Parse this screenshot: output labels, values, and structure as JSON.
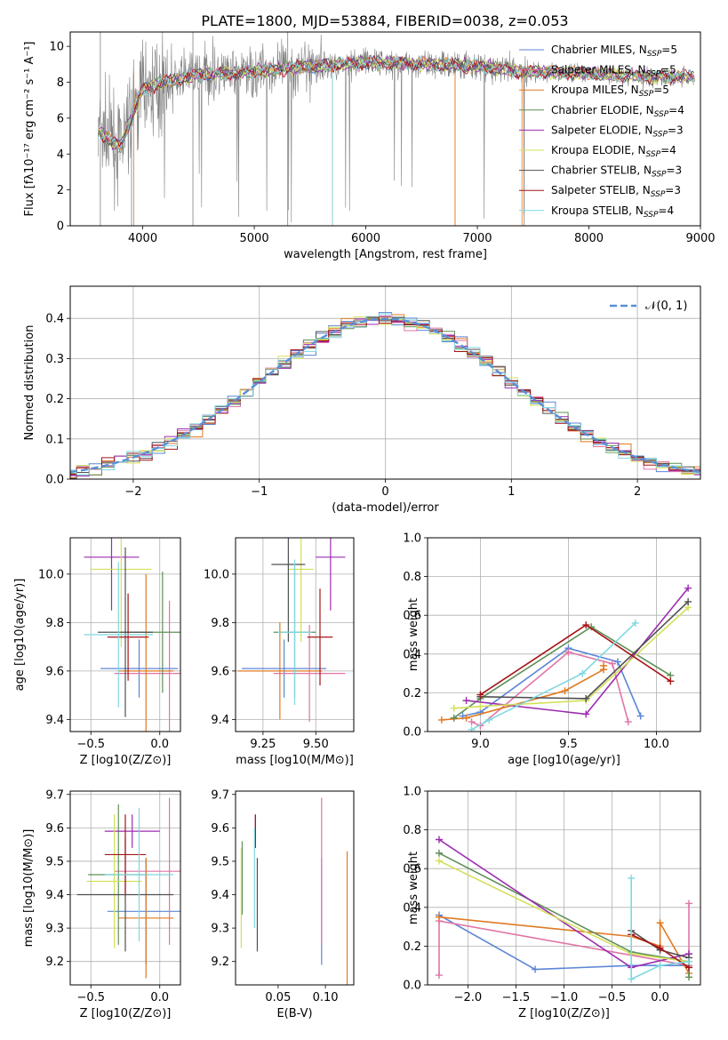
{
  "title": "PLATE=1800, MJD=53884, FIBERID=0038, z=0.053",
  "series": [
    {
      "name": "Chabrier MILES",
      "nssp": "5",
      "color": "#5b86d6"
    },
    {
      "name": "Salpeter MILES",
      "nssp": "5",
      "color": "#e075a6"
    },
    {
      "name": "Kroupa MILES",
      "nssp": "5",
      "color": "#e07a22"
    },
    {
      "name": "Chabrier ELODIE",
      "nssp": "4",
      "color": "#5f8f57"
    },
    {
      "name": "Salpeter ELODIE",
      "nssp": "3",
      "color": "#9c2bb0"
    },
    {
      "name": "Kroupa ELODIE",
      "nssp": "4",
      "color": "#d3e05a"
    },
    {
      "name": "Chabrier STELIB",
      "nssp": "3",
      "color": "#505050"
    },
    {
      "name": "Salpeter STELIB",
      "nssp": "3",
      "color": "#a61418"
    },
    {
      "name": "Kroupa STELIB",
      "nssp": "4",
      "color": "#7fd8e0"
    }
  ],
  "chart_data": [
    {
      "type": "line",
      "id": "spectrum",
      "title": "PLATE=1800, MJD=53884, FIBERID=0038, z=0.053",
      "xlabel": "wavelength [Angstrom, rest frame]",
      "ylabel": "Flux [fλ10⁻¹⁷ erg cm⁻² s⁻¹ A⁻¹]",
      "xlim": [
        3350,
        9000
      ],
      "ylim": [
        0,
        10.8
      ],
      "xticks": [
        4000,
        5000,
        6000,
        7000,
        8000,
        9000
      ],
      "yticks": [
        0,
        2,
        4,
        6,
        8,
        10
      ],
      "grid": false,
      "legend": "top-right",
      "data_color": "#808080",
      "continuum": [
        [
          3600,
          5.2
        ],
        [
          3800,
          4.4
        ],
        [
          3920,
          6.4
        ],
        [
          4000,
          7.6
        ],
        [
          4200,
          8.0
        ],
        [
          4500,
          8.4
        ],
        [
          5000,
          8.6
        ],
        [
          5500,
          8.9
        ],
        [
          6000,
          9.1
        ],
        [
          6500,
          9.0
        ],
        [
          7000,
          8.9
        ],
        [
          7400,
          8.6
        ],
        [
          8000,
          8.5
        ],
        [
          8500,
          8.3
        ],
        [
          8900,
          8.3
        ]
      ]
    },
    {
      "type": "line",
      "id": "residual-histogram",
      "xlabel": "(data-model)/error",
      "ylabel": "Normed distribution",
      "xlim": [
        -2.5,
        2.5
      ],
      "ylim": [
        0,
        0.48
      ],
      "xticks": [
        -2,
        -1,
        0,
        1,
        2
      ],
      "yticks": [
        0.0,
        0.1,
        0.2,
        0.3,
        0.4
      ],
      "grid": true,
      "legend": "top-right",
      "reference_label": "𝒩(0, 1)",
      "reference_color": "#5b8fd6",
      "bin_width": 0.1
    },
    {
      "type": "scatter",
      "id": "age-vs-Z",
      "xlabel": "Z [log10(Z/Z⊙)]",
      "ylabel": "age [log10(age/yr)]",
      "xlim": [
        -0.65,
        0.15
      ],
      "ylim": [
        9.35,
        10.15
      ],
      "xticks": [
        -0.5,
        0.0
      ],
      "yticks": [
        9.4,
        9.6,
        9.8,
        10.0
      ],
      "grid": true,
      "points": [
        {
          "x": -0.15,
          "y": 9.61,
          "xerr": 0.28,
          "yerr": 0.12
        },
        {
          "x": 0.07,
          "y": 9.59,
          "xerr": 0.4,
          "yerr": 0.3
        },
        {
          "x": -0.1,
          "y": 9.6,
          "xerr": 0.2,
          "yerr": 0.4
        },
        {
          "x": 0.02,
          "y": 9.76,
          "xerr": 0.3,
          "yerr": 0.25
        },
        {
          "x": -0.35,
          "y": 10.07,
          "xerr": 0.2,
          "yerr": 0.22
        },
        {
          "x": -0.28,
          "y": 10.02,
          "xerr": 0.22,
          "yerr": 0.32
        },
        {
          "x": -0.25,
          "y": 9.76,
          "xerr": 0.2,
          "yerr": 0.35
        },
        {
          "x": -0.23,
          "y": 9.74,
          "xerr": 0.15,
          "yerr": 0.18
        },
        {
          "x": -0.3,
          "y": 9.75,
          "xerr": 0.25,
          "yerr": 0.3
        }
      ]
    },
    {
      "type": "scatter",
      "id": "age-vs-mass",
      "xlabel": "mass [log10(M/M⊙)]",
      "ylabel": "",
      "xlim": [
        9.12,
        9.68
      ],
      "ylim": [
        9.35,
        10.15
      ],
      "xticks": [
        9.25,
        9.5
      ],
      "yticks": [
        9.4,
        9.6,
        9.8,
        10.0
      ],
      "grid": true,
      "points": [
        {
          "x": 9.35,
          "y": 9.61,
          "xerr": 0.2,
          "yerr": 0.12
        },
        {
          "x": 9.47,
          "y": 9.59,
          "xerr": 0.17,
          "yerr": 0.2
        },
        {
          "x": 9.33,
          "y": 9.6,
          "xerr": 0.2,
          "yerr": 0.2
        },
        {
          "x": 9.4,
          "y": 9.76,
          "xerr": 0.1,
          "yerr": 0.27
        },
        {
          "x": 9.57,
          "y": 10.07,
          "xerr": 0.07,
          "yerr": 0.22
        },
        {
          "x": 9.43,
          "y": 10.02,
          "xerr": 0.06,
          "yerr": 0.3
        },
        {
          "x": 9.37,
          "y": 10.04,
          "xerr": 0.08,
          "yerr": 0.32
        },
        {
          "x": 9.52,
          "y": 9.74,
          "xerr": 0.06,
          "yerr": 0.2
        },
        {
          "x": 9.4,
          "y": 9.76,
          "xerr": 0.08,
          "yerr": 0.3
        }
      ]
    },
    {
      "type": "line",
      "id": "massweight-vs-age",
      "xlabel": "age [log10(age/yr)]",
      "ylabel": "mass weight",
      "xlim": [
        8.7,
        10.25
      ],
      "ylim": [
        0,
        1.0
      ],
      "xticks": [
        9.0,
        9.5,
        10.0
      ],
      "yticks": [
        0.0,
        0.2,
        0.4,
        0.6,
        0.8,
        1.0
      ],
      "grid": true,
      "series": [
        {
          "x": [
            8.9,
            9.0,
            9.5,
            9.78,
            9.91
          ],
          "y": [
            0.08,
            0.1,
            0.43,
            0.36,
            0.08
          ]
        },
        {
          "x": [
            8.95,
            9.0,
            9.5,
            9.75,
            9.84
          ],
          "y": [
            0.05,
            0.03,
            0.41,
            0.35,
            0.05
          ]
        },
        {
          "x": [
            8.78,
            8.92,
            9.48,
            9.7,
            9.7
          ],
          "y": [
            0.06,
            0.07,
            0.21,
            0.32,
            0.34
          ]
        },
        {
          "x": [
            8.85,
            9.0,
            9.63,
            10.08
          ],
          "y": [
            0.07,
            0.17,
            0.54,
            0.29
          ]
        },
        {
          "x": [
            8.92,
            9.6,
            10.18
          ],
          "y": [
            0.16,
            0.09,
            0.74
          ]
        },
        {
          "x": [
            8.85,
            9.0,
            9.6,
            10.18
          ],
          "y": [
            0.12,
            0.13,
            0.16,
            0.64
          ]
        },
        {
          "x": [
            9.0,
            9.6,
            10.18
          ],
          "y": [
            0.18,
            0.17,
            0.67
          ]
        },
        {
          "x": [
            9.0,
            9.6,
            10.08
          ],
          "y": [
            0.19,
            0.55,
            0.26
          ]
        },
        {
          "x": [
            8.95,
            9.05,
            9.58,
            9.88
          ],
          "y": [
            0.01,
            0.06,
            0.3,
            0.56
          ]
        }
      ]
    },
    {
      "type": "scatter",
      "id": "mass-vs-Z",
      "xlabel": "Z [log10(Z/Z⊙)]",
      "ylabel": "mass [log10(M/M⊙)]",
      "xlim": [
        -0.65,
        0.15
      ],
      "ylim": [
        9.13,
        9.71
      ],
      "xticks": [
        -0.5,
        0.0
      ],
      "yticks": [
        9.2,
        9.3,
        9.4,
        9.5,
        9.6,
        9.7
      ],
      "grid": true,
      "points": [
        {
          "x": -0.1,
          "y": 9.35,
          "xerr": 0.28,
          "yerr": 0.16
        },
        {
          "x": 0.07,
          "y": 9.47,
          "xerr": 0.4,
          "yerr": 0.22
        },
        {
          "x": -0.1,
          "y": 9.33,
          "xerr": 0.2,
          "yerr": 0.18
        },
        {
          "x": -0.3,
          "y": 9.46,
          "xerr": 0.22,
          "yerr": 0.21
        },
        {
          "x": -0.2,
          "y": 9.59,
          "xerr": 0.2,
          "yerr": 0.05
        },
        {
          "x": -0.33,
          "y": 9.44,
          "xerr": 0.2,
          "yerr": 0.2
        },
        {
          "x": -0.25,
          "y": 9.4,
          "xerr": 0.35,
          "yerr": 0.17
        },
        {
          "x": -0.25,
          "y": 9.52,
          "xerr": 0.15,
          "yerr": 0.12
        },
        {
          "x": -0.15,
          "y": 9.46,
          "xerr": 0.25,
          "yerr": 0.2
        }
      ]
    },
    {
      "type": "scatter",
      "id": "mass-vs-EBV",
      "xlabel": "E(B-V)",
      "ylabel": "",
      "xlim": [
        0.005,
        0.13
      ],
      "ylim": [
        9.13,
        9.71
      ],
      "xticks": [
        0.05,
        0.1
      ],
      "yticks": [
        9.2,
        9.3,
        9.4,
        9.5,
        9.6,
        9.7
      ],
      "grid": false,
      "points": [
        {
          "x": 0.096,
          "y": 9.35,
          "yerr": 0.16
        },
        {
          "x": 0.096,
          "y": 9.47,
          "yerr": 0.22
        },
        {
          "x": 0.123,
          "y": 9.33,
          "yerr": 0.2
        },
        {
          "x": 0.012,
          "y": 9.45,
          "yerr": 0.11
        },
        {
          "x": 0.026,
          "y": 9.59,
          "yerr": 0.05
        },
        {
          "x": 0.011,
          "y": 9.39,
          "yerr": 0.15
        },
        {
          "x": 0.028,
          "y": 9.37,
          "yerr": 0.14
        },
        {
          "x": 0.026,
          "y": 9.59,
          "yerr": 0.05
        },
        {
          "x": 0.025,
          "y": 9.45,
          "yerr": 0.15
        }
      ]
    },
    {
      "type": "line",
      "id": "massweight-vs-Z",
      "xlabel": "Z [log10(Z/Z⊙)]",
      "ylabel": "mass weight",
      "xlim": [
        -2.42,
        0.42
      ],
      "ylim": [
        0,
        1.0
      ],
      "xticks": [
        -2.0,
        -1.5,
        -1.0,
        -0.5,
        0.0
      ],
      "yticks": [
        0.0,
        0.2,
        0.4,
        0.6,
        0.8,
        1.0
      ],
      "grid": true,
      "series": [
        {
          "x": [
            -2.3,
            -1.3,
            -0.3,
            0.0,
            0.3
          ],
          "y": [
            0.36,
            0.08,
            0.1,
            0.1,
            0.1
          ]
        },
        {
          "x": [
            -2.3,
            -2.3,
            0.3,
            0.3
          ],
          "y": [
            0.05,
            0.33,
            0.1,
            0.42
          ]
        },
        {
          "x": [
            -2.3,
            -0.3,
            0.0,
            0.0,
            0.3
          ],
          "y": [
            0.35,
            0.25,
            0.2,
            0.32,
            0.06
          ]
        },
        {
          "x": [
            -2.3,
            -0.3,
            0.3,
            0.3
          ],
          "y": [
            0.68,
            0.17,
            0.12,
            0.04
          ]
        },
        {
          "x": [
            -2.3,
            -0.3,
            0.3
          ],
          "y": [
            0.75,
            0.09,
            0.16
          ]
        },
        {
          "x": [
            -2.3,
            -0.3,
            0.3
          ],
          "y": [
            0.64,
            0.16,
            0.12
          ]
        },
        {
          "x": [
            -0.3,
            0.0,
            0.3
          ],
          "y": [
            0.28,
            0.18,
            0.14
          ]
        },
        {
          "x": [
            -0.3,
            0.0,
            0.3
          ],
          "y": [
            0.26,
            0.19,
            0.09
          ]
        },
        {
          "x": [
            -0.3,
            -0.3,
            0.0,
            0.3
          ],
          "y": [
            0.55,
            0.03,
            0.1,
            0.12
          ]
        }
      ]
    }
  ]
}
